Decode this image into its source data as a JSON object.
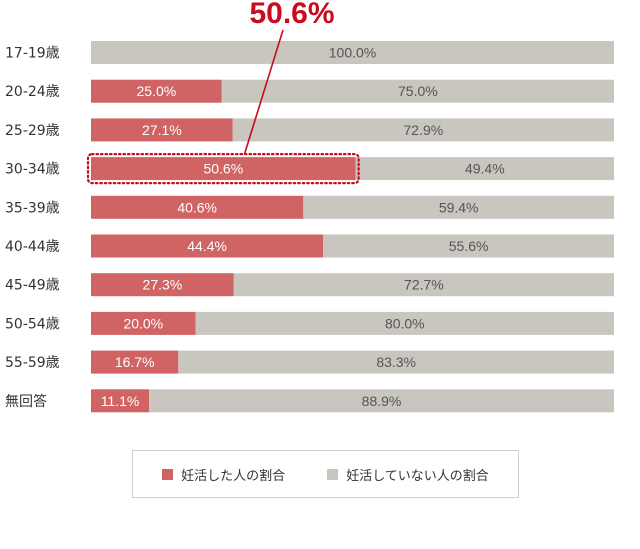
{
  "colors": {
    "active": "#d06464",
    "inactive": "#c8c6be",
    "highlight": "#cc0a1e"
  },
  "legend": {
    "active_label": "妊活した人の割合",
    "inactive_label": "妊活していない人の割合"
  },
  "chart_data": {
    "type": "bar",
    "orientation": "horizontal",
    "stacked": true,
    "xlim": [
      0,
      100
    ],
    "highlight": {
      "category": "30-34歳",
      "label": "50.6%"
    },
    "categories": [
      "17-19歳",
      "20-24歳",
      "25-29歳",
      "30-34歳",
      "35-39歳",
      "40-44歳",
      "45-49歳",
      "50-54歳",
      "55-59歳",
      "無回答"
    ],
    "series": [
      {
        "name": "妊活した人の割合",
        "values": [
          0,
          25.0,
          27.1,
          50.6,
          40.6,
          44.4,
          27.3,
          20.0,
          16.7,
          11.1
        ],
        "labels": [
          "",
          "25.0%",
          "27.1%",
          "50.6%",
          "40.6%",
          "44.4%",
          "27.3%",
          "20.0%",
          "16.7%",
          "11.1%"
        ]
      },
      {
        "name": "妊活していない人の割合",
        "values": [
          100.0,
          75.0,
          72.9,
          49.4,
          59.4,
          55.6,
          72.7,
          80.0,
          83.3,
          88.9
        ],
        "labels": [
          "100.0%",
          "75.0%",
          "72.9%",
          "49.4%",
          "59.4%",
          "55.6%",
          "72.7%",
          "80.0%",
          "83.3%",
          "88.9%"
        ]
      }
    ]
  }
}
